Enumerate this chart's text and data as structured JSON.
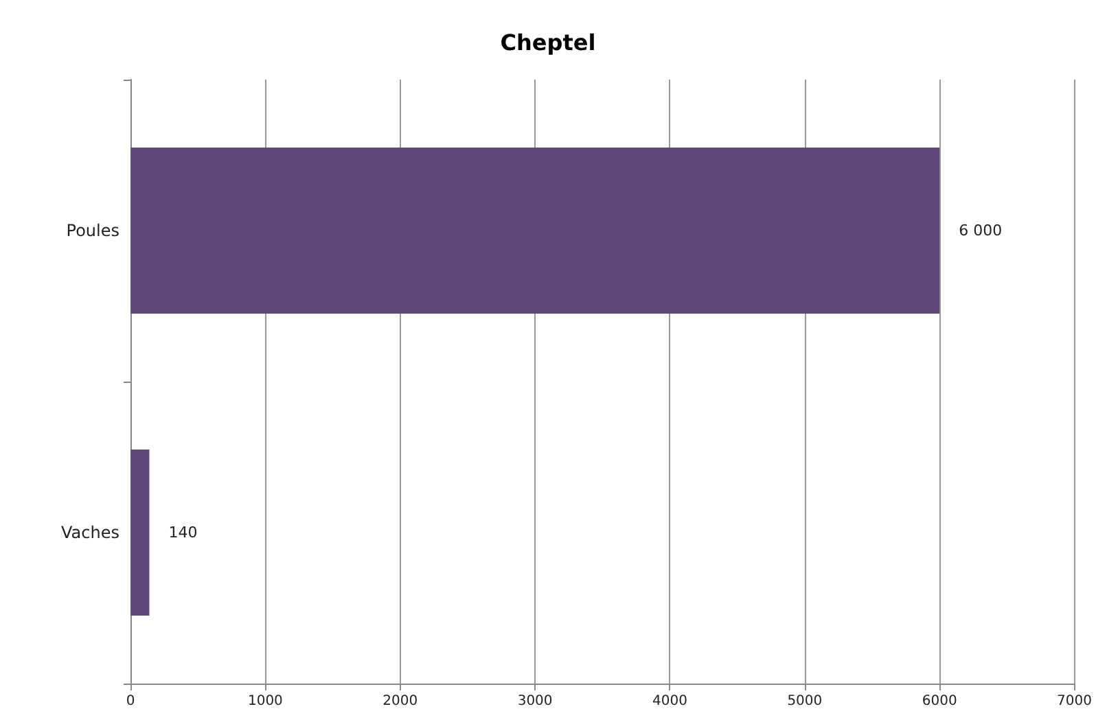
{
  "chart_data": {
    "type": "bar",
    "orientation": "horizontal",
    "title": "Cheptel",
    "categories": [
      "Poules",
      "Vaches"
    ],
    "values": [
      6000,
      140
    ],
    "value_labels": [
      "6 000",
      "140"
    ],
    "color": "#604a7b",
    "xlim": [
      0,
      7000
    ],
    "xticks": [
      0,
      1000,
      2000,
      3000,
      4000,
      5000,
      6000,
      7000
    ],
    "grid": "x"
  }
}
